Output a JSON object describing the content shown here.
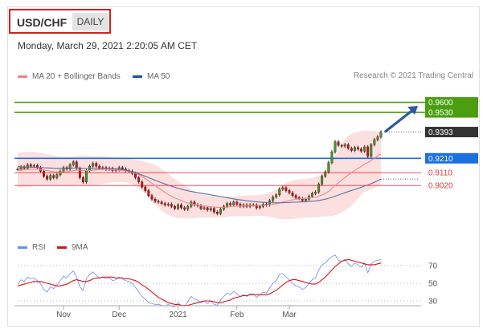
{
  "header": {
    "pair": "USD/CHF",
    "timeframe": "DAILY",
    "datetime": "Monday, March 29, 2021 2:20:05 AM CET"
  },
  "legend": {
    "ma20": "MA 20 + Bollinger Bands",
    "ma50": "MA 50",
    "credit": "Research © 2021 Trading Central",
    "rsi": "RSI",
    "ma9": "9MA"
  },
  "colors": {
    "green": "#4a9e0f",
    "blue": "#1c6fe0",
    "red": "#e23a3a",
    "dark": "#333333",
    "bollinger": "#fbd4d4",
    "ma50": "#5a6fa8",
    "rsi": "#6b8ee6"
  },
  "chart_data": {
    "type": "candlestick",
    "price_ylim": [
      0.868,
      0.9715
    ],
    "levels": [
      {
        "value": 0.96,
        "label": "0.9600",
        "kind": "resistance"
      },
      {
        "value": 0.953,
        "label": "0.9530",
        "kind": "resistance"
      },
      {
        "value": 0.9393,
        "label": "0.9393",
        "kind": "last"
      },
      {
        "value": 0.921,
        "label": "0.9210",
        "kind": "pivot"
      },
      {
        "value": 0.911,
        "label": "0.9110",
        "kind": "support"
      },
      {
        "value": 0.902,
        "label": "0.9020",
        "kind": "support"
      }
    ],
    "x_ticks": [
      "Nov",
      "Dec",
      "2021",
      "Feb",
      "Mar"
    ],
    "rsi_ticks": [
      "70",
      "50",
      "30"
    ],
    "rsi_ylim": [
      20,
      80
    ],
    "close": [
      0.9135,
      0.915,
      0.914,
      0.9165,
      0.9155,
      0.916,
      0.9145,
      0.912,
      0.9085,
      0.9065,
      0.909,
      0.9075,
      0.9095,
      0.912,
      0.9145,
      0.9135,
      0.9165,
      0.9185,
      0.914,
      0.9075,
      0.9045,
      0.9125,
      0.9155,
      0.9175,
      0.9155,
      0.914,
      0.9145,
      0.9135,
      0.914,
      0.9125,
      0.913,
      0.9145,
      0.9135,
      0.9125,
      0.912,
      0.9105,
      0.9075,
      0.9045,
      0.901,
      0.8985,
      0.895,
      0.8925,
      0.891,
      0.8905,
      0.8895,
      0.8885,
      0.889,
      0.8875,
      0.886,
      0.8885,
      0.8865,
      0.8855,
      0.8875,
      0.8905,
      0.8885,
      0.888,
      0.886,
      0.8865,
      0.885,
      0.886,
      0.8835,
      0.8825,
      0.8855,
      0.8875,
      0.8895,
      0.8885,
      0.8905,
      0.889,
      0.8875,
      0.8885,
      0.8875,
      0.8885,
      0.8885,
      0.8865,
      0.8875,
      0.889,
      0.8885,
      0.8915,
      0.894,
      0.8955,
      0.8995,
      0.9005,
      0.8985,
      0.897,
      0.895,
      0.8935,
      0.893,
      0.8915,
      0.8925,
      0.8945,
      0.8965,
      0.8975,
      0.903,
      0.9085,
      0.9115,
      0.918,
      0.9255,
      0.9325,
      0.93,
      0.9295,
      0.9305,
      0.928,
      0.9265,
      0.9285,
      0.9275,
      0.926,
      0.929,
      0.9225,
      0.9305,
      0.934,
      0.936,
      0.9393
    ],
    "ma20": [
      0.9125,
      0.9128,
      0.913,
      0.9132,
      0.9133,
      0.9134,
      0.9133,
      0.9131,
      0.9128,
      0.9124,
      0.912,
      0.9117,
      0.9115,
      0.9114,
      0.9115,
      0.9117,
      0.912,
      0.9124,
      0.9127,
      0.9127,
      0.9125,
      0.9124,
      0.9125,
      0.9127,
      0.913,
      0.9132,
      0.9133,
      0.9133,
      0.9132,
      0.913,
      0.9128,
      0.9127,
      0.9125,
      0.9122,
      0.9118,
      0.9112,
      0.9105,
      0.9095,
      0.9082,
      0.9068,
      0.9052,
      0.9036,
      0.902,
      0.9004,
      0.8988,
      0.8972,
      0.8958,
      0.8946,
      0.8934,
      0.8925,
      0.8915,
      0.8906,
      0.8898,
      0.8893,
      0.8888,
      0.8884,
      0.888,
      0.8877,
      0.8874,
      0.8872,
      0.887,
      0.8868,
      0.8868,
      0.8869,
      0.8871,
      0.8873,
      0.8875,
      0.8876,
      0.8877,
      0.8878,
      0.8879,
      0.888,
      0.888,
      0.8881,
      0.8882,
      0.8883,
      0.8884,
      0.8886,
      0.8889,
      0.8893,
      0.8898,
      0.8905,
      0.8911,
      0.8916,
      0.892,
      0.8924,
      0.8927,
      0.8929,
      0.8931,
      0.8933,
      0.8936,
      0.8939,
      0.8945,
      0.8954,
      0.8965,
      0.898,
      0.9,
      0.9022,
      0.904,
      0.9058,
      0.9076,
      0.9094,
      0.911,
      0.9126,
      0.914,
      0.9154,
      0.917,
      0.918,
      0.9195,
      0.921,
      0.9226,
      0.924
    ],
    "bb_upper": [
      0.925,
      0.9252,
      0.9254,
      0.9255,
      0.9255,
      0.9254,
      0.9252,
      0.9248,
      0.9243,
      0.9238,
      0.9233,
      0.9228,
      0.9225,
      0.9222,
      0.922,
      0.922,
      0.9222,
      0.9225,
      0.9228,
      0.923,
      0.923,
      0.9229,
      0.9228,
      0.9227,
      0.9226,
      0.9225,
      0.9224,
      0.9222,
      0.922,
      0.9218,
      0.9215,
      0.9212,
      0.921,
      0.9207,
      0.9205,
      0.9203,
      0.92,
      0.9197,
      0.9192,
      0.9186,
      0.918,
      0.9172,
      0.9162,
      0.915,
      0.9135,
      0.9118,
      0.91,
      0.9082,
      0.9065,
      0.905,
      0.9035,
      0.902,
      0.9005,
      0.8992,
      0.898,
      0.897,
      0.8962,
      0.8955,
      0.895,
      0.8946,
      0.8943,
      0.894,
      0.8939,
      0.8939,
      0.894,
      0.8942,
      0.8944,
      0.8946,
      0.8948,
      0.895,
      0.8951,
      0.8952,
      0.8952,
      0.8953,
      0.8955,
      0.8958,
      0.8962,
      0.897,
      0.898,
      0.8995,
      0.901,
      0.9025,
      0.9038,
      0.9048,
      0.9055,
      0.906,
      0.9063,
      0.9065,
      0.9067,
      0.907,
      0.9075,
      0.908,
      0.909,
      0.9105,
      0.9125,
      0.9155,
      0.919,
      0.923,
      0.927,
      0.931,
      0.934,
      0.9365,
      0.938,
      0.939,
      0.9395,
      0.94,
      0.9402,
      0.9402,
      0.94,
      0.94,
      0.9398,
      0.9398
    ],
    "bb_lower": [
      0.9005,
      0.9007,
      0.901,
      0.9012,
      0.9015,
      0.9018,
      0.902,
      0.9022,
      0.9022,
      0.9022,
      0.9021,
      0.902,
      0.9019,
      0.9018,
      0.9018,
      0.9019,
      0.902,
      0.9022,
      0.9024,
      0.9025,
      0.9024,
      0.9022,
      0.902,
      0.9022,
      0.9025,
      0.9028,
      0.9032,
      0.9036,
      0.904,
      0.9042,
      0.9044,
      0.9045,
      0.9044,
      0.9042,
      0.9038,
      0.903,
      0.9018,
      0.9002,
      0.8983,
      0.8963,
      0.894,
      0.8915,
      0.889,
      0.8865,
      0.8845,
      0.8828,
      0.8815,
      0.8805,
      0.8798,
      0.8795,
      0.8792,
      0.879,
      0.879,
      0.8791,
      0.8793,
      0.8795,
      0.8797,
      0.8798,
      0.8798,
      0.8798,
      0.8797,
      0.8796,
      0.8797,
      0.8799,
      0.8802,
      0.8804,
      0.8806,
      0.8807,
      0.8807,
      0.8806,
      0.8806,
      0.8807,
      0.8808,
      0.8809,
      0.8809,
      0.8808,
      0.8806,
      0.8802,
      0.8798,
      0.8792,
      0.8786,
      0.8785,
      0.8785,
      0.8786,
      0.8787,
      0.8789,
      0.8792,
      0.8795,
      0.8797,
      0.8798,
      0.8798,
      0.8798,
      0.88,
      0.8803,
      0.8805,
      0.8805,
      0.8808,
      0.8815,
      0.8822,
      0.8832,
      0.8845,
      0.886,
      0.888,
      0.8905,
      0.893,
      0.8955,
      0.8975,
      0.8985,
      0.8995,
      0.9005,
      0.9015,
      0.9025
    ],
    "ma50": [
      0.9152,
      0.9151,
      0.915,
      0.9149,
      0.9148,
      0.9147,
      0.9146,
      0.9145,
      0.9144,
      0.9143,
      0.9142,
      0.9141,
      0.914,
      0.914,
      0.914,
      0.914,
      0.9141,
      0.9142,
      0.9142,
      0.9141,
      0.914,
      0.9139,
      0.9139,
      0.9139,
      0.9139,
      0.9139,
      0.9139,
      0.9139,
      0.9138,
      0.9137,
      0.9136,
      0.9134,
      0.9131,
      0.9127,
      0.9122,
      0.9116,
      0.9109,
      0.9101,
      0.9093,
      0.9084,
      0.9075,
      0.9066,
      0.9057,
      0.9048,
      0.9039,
      0.9031,
      0.9023,
      0.9015,
      0.9008,
      0.9001,
      0.8995,
      0.8989,
      0.8984,
      0.8979,
      0.8975,
      0.8971,
      0.8967,
      0.8963,
      0.8959,
      0.8955,
      0.8951,
      0.8947,
      0.8943,
      0.8939,
      0.8935,
      0.8931,
      0.8927,
      0.8923,
      0.892,
      0.8917,
      0.8914,
      0.8911,
      0.8909,
      0.8907,
      0.8905,
      0.8903,
      0.8902,
      0.8901,
      0.89,
      0.89,
      0.89,
      0.89,
      0.8901,
      0.8902,
      0.8903,
      0.8904,
      0.8905,
      0.8906,
      0.8907,
      0.8909,
      0.8911,
      0.8913,
      0.8916,
      0.892,
      0.8925,
      0.8931,
      0.8938,
      0.8946,
      0.8954,
      0.8962,
      0.897,
      0.8978,
      0.8986,
      0.8993,
      0.9,
      0.9008,
      0.9016,
      0.9024,
      0.9033,
      0.9043,
      0.9055,
      0.9065
    ],
    "rsi": [
      49,
      54,
      52,
      57,
      55,
      56,
      53,
      49,
      43,
      40,
      46,
      44,
      48,
      53,
      58,
      56,
      61,
      64,
      57,
      46,
      42,
      55,
      60,
      63,
      59,
      56,
      57,
      55,
      56,
      53,
      54,
      57,
      55,
      53,
      52,
      50,
      45,
      40,
      35,
      32,
      28,
      27,
      26,
      26,
      25,
      24,
      26,
      24,
      23,
      28,
      25,
      24,
      29,
      35,
      32,
      31,
      28,
      30,
      27,
      30,
      26,
      25,
      31,
      35,
      39,
      37,
      41,
      38,
      35,
      37,
      35,
      38,
      38,
      34,
      37,
      40,
      39,
      45,
      50,
      53,
      60,
      61,
      57,
      54,
      50,
      47,
      46,
      43,
      45,
      50,
      54,
      56,
      65,
      71,
      73,
      77,
      80,
      82,
      76,
      75,
      77,
      72,
      69,
      73,
      71,
      68,
      73,
      62,
      72,
      75,
      76,
      77
    ],
    "rsi_ma9": [
      47,
      48,
      49,
      50,
      51,
      52,
      52,
      52,
      51,
      50,
      49,
      48,
      47,
      47,
      48,
      49,
      51,
      53,
      54,
      53,
      52,
      52,
      53,
      55,
      56,
      56,
      57,
      57,
      57,
      57,
      56,
      56,
      56,
      55,
      55,
      54,
      53,
      51,
      48,
      46,
      43,
      40,
      37,
      34,
      32,
      30,
      28,
      27,
      26,
      26,
      25,
      25,
      25,
      26,
      27,
      28,
      29,
      30,
      30,
      30,
      29,
      28,
      28,
      29,
      30,
      31,
      33,
      34,
      35,
      36,
      36,
      37,
      37,
      37,
      37,
      37,
      37,
      38,
      40,
      42,
      45,
      48,
      51,
      53,
      54,
      54,
      53,
      52,
      51,
      50,
      49,
      49,
      51,
      54,
      57,
      61,
      65,
      69,
      72,
      75,
      76,
      77,
      76,
      75,
      74,
      73,
      72,
      71,
      71,
      71,
      72,
      73
    ]
  }
}
